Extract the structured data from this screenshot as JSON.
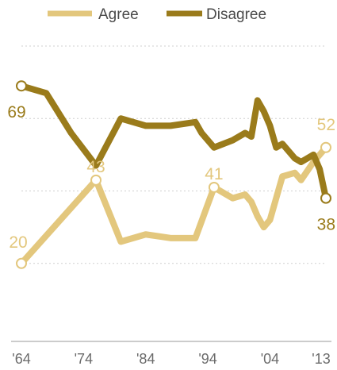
{
  "chart_data": {
    "type": "line",
    "title": "",
    "xlabel": "",
    "ylabel": "",
    "xlim": [
      1964,
      2013
    ],
    "ylim": [
      0,
      80
    ],
    "grid": true,
    "legend": "top",
    "x_tick_labels": [
      "'64",
      "'74",
      "'84",
      "'94",
      "'04",
      "'13"
    ],
    "x_tick_values": [
      1964,
      1974,
      1984,
      1994,
      2004,
      2013
    ],
    "series": [
      {
        "name": "Agree",
        "color": "#e3c77d",
        "x": [
          1964,
          1976,
          1980,
          1984,
          1988,
          1992,
          1995,
          1998,
          2000,
          2001,
          2002,
          2003,
          2004,
          2005,
          2006,
          2008,
          2009,
          2011,
          2012,
          2013
        ],
        "y": [
          20,
          43,
          26,
          28,
          27,
          27,
          41,
          38,
          39,
          37,
          33,
          30,
          32,
          38,
          44,
          45,
          43,
          48,
          50,
          52
        ],
        "labels": [
          {
            "x": 1964,
            "text": "20"
          },
          {
            "x": 1976,
            "text": "43"
          },
          {
            "x": 1995,
            "text": "41"
          },
          {
            "x": 2013,
            "text": "52"
          }
        ],
        "markers_at": [
          1964,
          1976,
          1995,
          2013
        ]
      },
      {
        "name": "Disagree",
        "color": "#9a7b1b",
        "x": [
          1964,
          1968,
          1972,
          1976,
          1980,
          1984,
          1988,
          1992,
          1993,
          1995,
          1998,
          2000,
          2001,
          2002,
          2003,
          2004,
          2005,
          2006,
          2008,
          2009,
          2011,
          2012,
          2013
        ],
        "y": [
          69,
          67,
          56,
          47,
          60,
          58,
          58,
          59,
          56,
          52,
          54,
          56,
          55,
          65,
          62,
          58,
          52,
          53,
          49,
          48,
          50,
          46,
          38
        ],
        "labels": [
          {
            "x": 1964,
            "text": "69"
          },
          {
            "x": 2013,
            "text": "38"
          }
        ],
        "markers_at": [
          1964,
          2013
        ]
      }
    ]
  }
}
